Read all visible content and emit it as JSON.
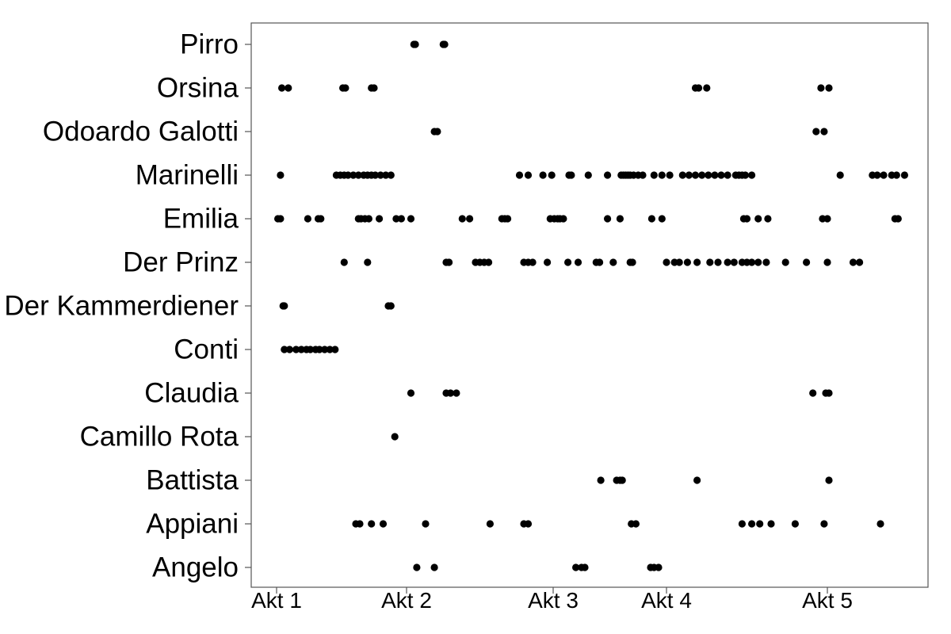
{
  "chart_data": {
    "type": "scatter",
    "title": "",
    "xlabel": "",
    "ylabel": "",
    "xlim": [
      1,
      6.09
    ],
    "x_ticks": [
      {
        "value": 1,
        "label": "Akt 1"
      },
      {
        "value": 2,
        "label": "Akt 2"
      },
      {
        "value": 3,
        "label": "Akt 3"
      },
      {
        "value": 4,
        "label": "Akt 4"
      },
      {
        "value": 5,
        "label": "Akt 5"
      }
    ],
    "categories": [
      "Angelo",
      "Appiani",
      "Battista",
      "Camillo Rota",
      "Claudia",
      "Conti",
      "Der Kammerdiener",
      "Der Prinz",
      "Emilia",
      "Marinelli",
      "Odoardo Galotti",
      "Orsina",
      "Pirro"
    ],
    "grid": false,
    "point_color": "#000000",
    "series": [
      {
        "category": "Pirro",
        "x": [
          2.05,
          2.06,
          2.25,
          2.26
        ]
      },
      {
        "category": "Orsina",
        "x": [
          1.04,
          1.09,
          1.51,
          1.53,
          1.73,
          1.75,
          4.18,
          4.2,
          4.25,
          4.96,
          5.01
        ]
      },
      {
        "category": "Odoardo Galotti",
        "x": [
          2.19,
          2.21,
          4.93,
          4.98
        ]
      },
      {
        "category": "Marinelli",
        "x": [
          1.03,
          1.46,
          1.49,
          1.52,
          1.55,
          1.59,
          1.63,
          1.67,
          1.7,
          1.73,
          1.76,
          1.8,
          1.84,
          1.88,
          2.77,
          2.83,
          2.93,
          2.99,
          3.14,
          3.16,
          3.31,
          3.48,
          3.6,
          3.62,
          3.64,
          3.66,
          3.68,
          3.71,
          3.75,
          3.79,
          3.89,
          3.96,
          4.02,
          4.1,
          4.14,
          4.18,
          4.22,
          4.26,
          4.3,
          4.34,
          4.38,
          4.43,
          4.45,
          4.47,
          4.49,
          4.53,
          5.08,
          5.28,
          5.31,
          5.35,
          5.4,
          5.43,
          5.48
        ]
      },
      {
        "category": "Emilia",
        "x": [
          1.01,
          1.03,
          1.24,
          1.32,
          1.34,
          1.63,
          1.65,
          1.68,
          1.71,
          1.79,
          1.92,
          1.96,
          2.03,
          2.38,
          2.43,
          2.65,
          2.67,
          2.69,
          2.98,
          3.01,
          3.04,
          3.06,
          3.09,
          3.48,
          3.59,
          3.87,
          3.96,
          4.48,
          4.5,
          4.57,
          4.63,
          4.97,
          5,
          5.42,
          5.44
        ]
      },
      {
        "category": "Der Prinz",
        "x": [
          1.52,
          1.7,
          2.27,
          2.29,
          2.47,
          2.5,
          2.53,
          2.56,
          2.8,
          2.83,
          2.86,
          2.96,
          3.13,
          3.22,
          3.38,
          3.41,
          3.53,
          3.68,
          3.7,
          4,
          4.05,
          4.08,
          4.13,
          4.19,
          4.27,
          4.32,
          4.38,
          4.42,
          4.47,
          4.5,
          4.53,
          4.57,
          4.62,
          4.74,
          4.87,
          5,
          5.16,
          5.2
        ]
      },
      {
        "category": "Der Kammerdiener",
        "x": [
          1.05,
          1.06,
          1.86,
          1.88
        ]
      },
      {
        "category": "Conti",
        "x": [
          1.06,
          1.1,
          1.15,
          1.19,
          1.23,
          1.26,
          1.3,
          1.33,
          1.37,
          1.41,
          1.45
        ]
      },
      {
        "category": "Claudia",
        "x": [
          2.03,
          2.27,
          2.3,
          2.34,
          4.91,
          4.99,
          5.01
        ]
      },
      {
        "category": "Camillo Rota",
        "x": [
          1.91
        ]
      },
      {
        "category": "Battista",
        "x": [
          3.42,
          3.56,
          3.59,
          3.61,
          4.19,
          5.01
        ]
      },
      {
        "category": "Appiani",
        "x": [
          1.61,
          1.64,
          1.73,
          1.82,
          2.13,
          2.57,
          2.8,
          2.83,
          3.69,
          3.73,
          4.47,
          4.53,
          4.58,
          4.65,
          4.8,
          4.98,
          5.33
        ]
      },
      {
        "category": "Angelo",
        "x": [
          2.07,
          2.19,
          3.2,
          3.25,
          3.28,
          3.86,
          3.89,
          3.93
        ]
      }
    ]
  }
}
